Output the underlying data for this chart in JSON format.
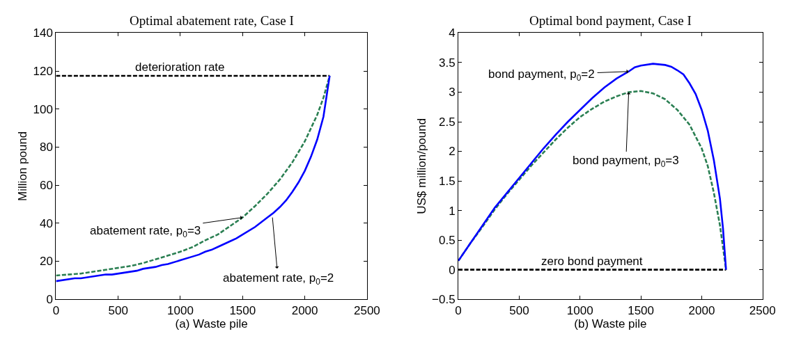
{
  "chart_data": [
    {
      "type": "line",
      "title": "Optimal abatement rate, Case I",
      "xlabel": "(a) Waste pile",
      "ylabel": "Million pound",
      "xlim": [
        0,
        2500
      ],
      "xticks": [
        0,
        500,
        1000,
        1500,
        2000,
        2500
      ],
      "ylim": [
        0,
        140
      ],
      "yticks": [
        0,
        20,
        40,
        60,
        80,
        100,
        120,
        140
      ],
      "series": [
        {
          "color": "#000000",
          "line_style": "dashed",
          "x": [
            0,
            2200
          ],
          "values": [
            117.5,
            117.5
          ]
        },
        {
          "color": "#2a7f52",
          "line_style": "dashed",
          "x": [
            0,
            200,
            400,
            600,
            700,
            800,
            900,
            1000,
            1100,
            1200,
            1300,
            1400,
            1500,
            1600,
            1700,
            1800,
            1900,
            2000,
            2100,
            2150,
            2200
          ],
          "values": [
            12.5,
            13.5,
            15.5,
            17.5,
            19,
            21,
            23,
            25,
            27.5,
            31,
            34,
            38.5,
            43,
            49,
            55.5,
            63,
            72,
            83,
            97,
            106,
            117.5
          ]
        },
        {
          "color": "#0000ff",
          "line_style": "solid",
          "x": [
            0,
            150,
            200,
            400,
            450,
            650,
            700,
            800,
            850,
            900,
            1000,
            1100,
            1150,
            1200,
            1250,
            1300,
            1400,
            1450,
            1500,
            1600,
            1700,
            1750,
            1800,
            1850,
            1900,
            1950,
            2000,
            2050,
            2100,
            2150,
            2200
          ],
          "values": [
            9.5,
            11,
            11,
            13,
            13,
            15,
            16,
            17,
            18,
            18.5,
            20.5,
            22.5,
            23.5,
            25,
            26,
            27.5,
            30.5,
            32,
            34,
            38,
            43,
            45.5,
            48.5,
            52,
            56.5,
            61.5,
            67.5,
            75,
            84,
            96,
            117.5
          ]
        }
      ],
      "annotations": [
        {
          "text": "deterioration rate",
          "x": 1000,
          "y": 117.5
        },
        {
          "text": "abatement rate, p$_{0}$=3",
          "x": 1500,
          "y": 43
        },
        {
          "text": "abatement rate, p$_{0}$=2",
          "x": 1740,
          "y": 43
        }
      ]
    },
    {
      "type": "line",
      "title": "Optimal bond payment, Case I",
      "xlabel": "(b) Waste pile",
      "ylabel": "US$ million/pound",
      "xlim": [
        0,
        2500
      ],
      "xticks": [
        0,
        500,
        1000,
        1500,
        2000,
        2500
      ],
      "ylim": [
        -0.5,
        4
      ],
      "yticks": [
        {
          "value": -0.5,
          "label": "−0.5"
        },
        0,
        0.5,
        1,
        1.5,
        2,
        2.5,
        3,
        3.5,
        4
      ],
      "series": [
        {
          "color": "#000000",
          "line_style": "dashed",
          "x": [
            0,
            2200
          ],
          "values": [
            0,
            0
          ]
        },
        {
          "color": "#2a7f52",
          "line_style": "dashed",
          "x": [
            0,
            100,
            200,
            300,
            400,
            500,
            600,
            700,
            800,
            900,
            1000,
            1100,
            1200,
            1300,
            1400,
            1500,
            1600,
            1700,
            1800,
            1900,
            2000,
            2050,
            2100,
            2150,
            2200
          ],
          "values": [
            0.15,
            0.45,
            0.73,
            1.02,
            1.28,
            1.52,
            1.76,
            1.98,
            2.2,
            2.4,
            2.58,
            2.72,
            2.84,
            2.93,
            3.0,
            3.02,
            2.98,
            2.88,
            2.7,
            2.45,
            2.05,
            1.75,
            1.3,
            0.75,
            0
          ]
        },
        {
          "color": "#0000ff",
          "line_style": "solid",
          "x": [
            0,
            100,
            200,
            300,
            400,
            500,
            600,
            700,
            800,
            900,
            1000,
            1100,
            1200,
            1300,
            1400,
            1450,
            1500,
            1600,
            1700,
            1750,
            1800,
            1850,
            1900,
            1950,
            2000,
            2050,
            2100,
            2150,
            2175,
            2200
          ],
          "values": [
            0.15,
            0.45,
            0.75,
            1.05,
            1.3,
            1.55,
            1.8,
            2.05,
            2.28,
            2.5,
            2.7,
            2.9,
            3.08,
            3.23,
            3.35,
            3.42,
            3.45,
            3.48,
            3.46,
            3.43,
            3.37,
            3.3,
            3.15,
            2.97,
            2.7,
            2.35,
            1.85,
            1.2,
            0.7,
            0
          ]
        }
      ],
      "annotations": [
        {
          "text": "bond payment, p$_{0}$=2",
          "x": 1400,
          "y": 3.35
        },
        {
          "text": "bond payment, p$_{0}$=3",
          "x": 1400,
          "y": 3.0
        },
        {
          "text": "zero bond payment",
          "x": 1100,
          "y": 0
        }
      ]
    }
  ]
}
